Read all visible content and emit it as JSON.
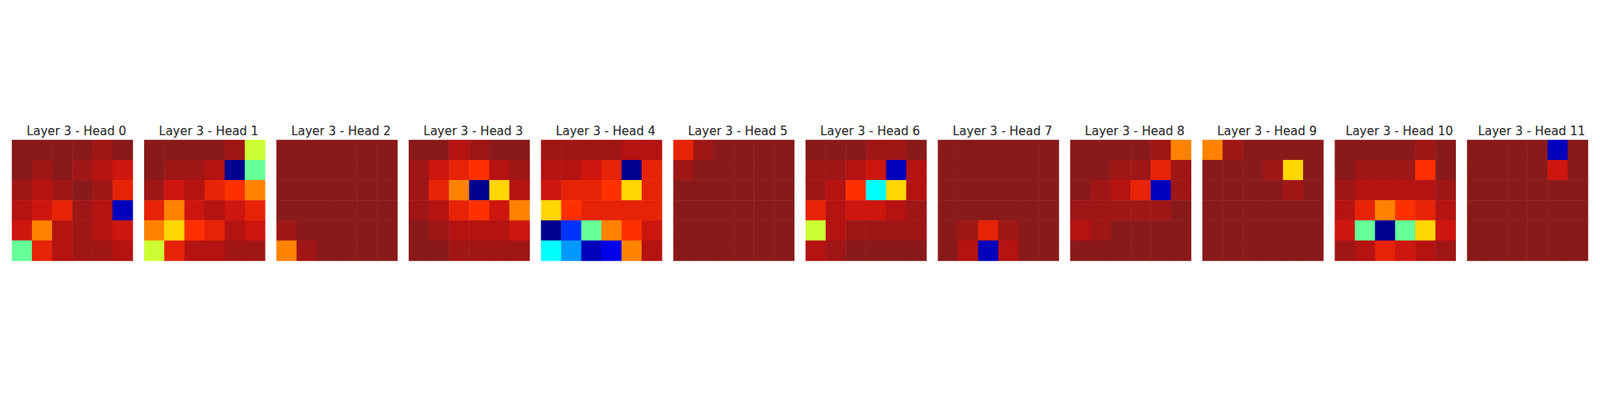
{
  "chart_data": [
    {
      "type": "heatmap",
      "title": "Layer 3 - Head 0",
      "tick_labels": false,
      "cells": [
        [
          0.9,
          0.9,
          0.9,
          0.9,
          0.85,
          0.9
        ],
        [
          0.9,
          0.85,
          0.9,
          0.85,
          0.8,
          0.75
        ],
        [
          0.85,
          0.8,
          0.85,
          0.9,
          0.85,
          0.7
        ],
        [
          0.8,
          0.75,
          0.7,
          0.85,
          0.8,
          0.2
        ],
        [
          0.75,
          0.6,
          0.8,
          0.85,
          0.8,
          0.75
        ],
        [
          0.45,
          0.7,
          0.8,
          0.85,
          0.85,
          0.8
        ]
      ]
    },
    {
      "type": "heatmap",
      "title": "Layer 3 - Head 1",
      "tick_labels": false,
      "cells": [
        [
          0.9,
          0.9,
          0.9,
          0.9,
          0.85,
          0.5
        ],
        [
          0.9,
          0.85,
          0.85,
          0.8,
          0.15,
          0.45
        ],
        [
          0.85,
          0.75,
          0.8,
          0.7,
          0.65,
          0.6
        ],
        [
          0.7,
          0.6,
          0.75,
          0.8,
          0.75,
          0.7
        ],
        [
          0.6,
          0.55,
          0.65,
          0.7,
          0.8,
          0.75
        ],
        [
          0.5,
          0.7,
          0.8,
          0.8,
          0.85,
          0.85
        ]
      ]
    },
    {
      "type": "heatmap",
      "title": "Layer 3 - Head 2",
      "tick_labels": false,
      "cells": [
        [
          0.9,
          0.9,
          0.9,
          0.9,
          0.9,
          0.9
        ],
        [
          0.9,
          0.9,
          0.9,
          0.9,
          0.9,
          0.9
        ],
        [
          0.9,
          0.9,
          0.9,
          0.9,
          0.9,
          0.9
        ],
        [
          0.9,
          0.9,
          0.9,
          0.9,
          0.9,
          0.9
        ],
        [
          0.85,
          0.9,
          0.9,
          0.9,
          0.9,
          0.9
        ],
        [
          0.6,
          0.85,
          0.9,
          0.9,
          0.9,
          0.9
        ]
      ]
    },
    {
      "type": "heatmap",
      "title": "Layer 3 - Head 3",
      "tick_labels": false,
      "cells": [
        [
          0.9,
          0.9,
          0.8,
          0.85,
          0.9,
          0.9
        ],
        [
          0.85,
          0.75,
          0.7,
          0.65,
          0.8,
          0.85
        ],
        [
          0.85,
          0.7,
          0.6,
          0.15,
          0.55,
          0.8
        ],
        [
          0.85,
          0.8,
          0.7,
          0.65,
          0.75,
          0.6
        ],
        [
          0.9,
          0.85,
          0.8,
          0.8,
          0.8,
          0.75
        ],
        [
          0.9,
          0.9,
          0.85,
          0.85,
          0.85,
          0.85
        ]
      ]
    },
    {
      "type": "heatmap",
      "title": "Layer 3 - Head 4",
      "tick_labels": false,
      "cells": [
        [
          0.85,
          0.85,
          0.85,
          0.85,
          0.8,
          0.8
        ],
        [
          0.8,
          0.8,
          0.75,
          0.7,
          0.15,
          0.7
        ],
        [
          0.75,
          0.7,
          0.7,
          0.65,
          0.55,
          0.7
        ],
        [
          0.55,
          0.65,
          0.7,
          0.7,
          0.7,
          0.7
        ],
        [
          0.15,
          0.3,
          0.45,
          0.6,
          0.65,
          0.75
        ],
        [
          0.4,
          0.35,
          0.2,
          0.25,
          0.6,
          0.8
        ]
      ]
    },
    {
      "type": "heatmap",
      "title": "Layer 3 - Head 5",
      "tick_labels": false,
      "cells": [
        [
          0.7,
          0.85,
          0.9,
          0.9,
          0.9,
          0.9
        ],
        [
          0.85,
          0.9,
          0.9,
          0.9,
          0.9,
          0.9
        ],
        [
          0.9,
          0.9,
          0.9,
          0.9,
          0.9,
          0.9
        ],
        [
          0.9,
          0.9,
          0.9,
          0.9,
          0.9,
          0.9
        ],
        [
          0.9,
          0.9,
          0.9,
          0.9,
          0.9,
          0.9
        ],
        [
          0.9,
          0.9,
          0.9,
          0.9,
          0.9,
          0.9
        ]
      ]
    },
    {
      "type": "heatmap",
      "title": "Layer 3 - Head 6",
      "tick_labels": false,
      "cells": [
        [
          0.9,
          0.9,
          0.9,
          0.85,
          0.85,
          0.9
        ],
        [
          0.85,
          0.85,
          0.8,
          0.75,
          0.2,
          0.8
        ],
        [
          0.85,
          0.8,
          0.65,
          0.4,
          0.55,
          0.8
        ],
        [
          0.7,
          0.8,
          0.75,
          0.75,
          0.8,
          0.85
        ],
        [
          0.5,
          0.8,
          0.85,
          0.85,
          0.85,
          0.85
        ],
        [
          0.8,
          0.85,
          0.9,
          0.9,
          0.9,
          0.9
        ]
      ]
    },
    {
      "type": "heatmap",
      "title": "Layer 3 - Head 7",
      "tick_labels": false,
      "cells": [
        [
          0.9,
          0.9,
          0.9,
          0.9,
          0.9,
          0.9
        ],
        [
          0.9,
          0.9,
          0.9,
          0.9,
          0.9,
          0.9
        ],
        [
          0.9,
          0.9,
          0.9,
          0.9,
          0.9,
          0.9
        ],
        [
          0.9,
          0.9,
          0.9,
          0.9,
          0.9,
          0.9
        ],
        [
          0.9,
          0.85,
          0.7,
          0.85,
          0.9,
          0.9
        ],
        [
          0.9,
          0.8,
          0.2,
          0.8,
          0.9,
          0.9
        ]
      ]
    },
    {
      "type": "heatmap",
      "title": "Layer 3 - Head 8",
      "tick_labels": false,
      "cells": [
        [
          0.9,
          0.9,
          0.9,
          0.9,
          0.85,
          0.6
        ],
        [
          0.9,
          0.9,
          0.85,
          0.85,
          0.7,
          0.85
        ],
        [
          0.9,
          0.85,
          0.8,
          0.7,
          0.2,
          0.85
        ],
        [
          0.85,
          0.85,
          0.85,
          0.85,
          0.85,
          0.9
        ],
        [
          0.8,
          0.85,
          0.9,
          0.9,
          0.9,
          0.9
        ],
        [
          0.9,
          0.9,
          0.9,
          0.9,
          0.9,
          0.9
        ]
      ]
    },
    {
      "type": "heatmap",
      "title": "Layer 3 - Head 9",
      "tick_labels": false,
      "cells": [
        [
          0.6,
          0.85,
          0.9,
          0.9,
          0.9,
          0.9
        ],
        [
          0.9,
          0.9,
          0.9,
          0.85,
          0.55,
          0.9
        ],
        [
          0.9,
          0.9,
          0.9,
          0.9,
          0.85,
          0.9
        ],
        [
          0.9,
          0.9,
          0.9,
          0.9,
          0.9,
          0.9
        ],
        [
          0.9,
          0.9,
          0.9,
          0.9,
          0.9,
          0.9
        ],
        [
          0.9,
          0.9,
          0.9,
          0.9,
          0.9,
          0.9
        ]
      ]
    },
    {
      "type": "heatmap",
      "title": "Layer 3 - Head 10",
      "tick_labels": false,
      "cells": [
        [
          0.9,
          0.9,
          0.9,
          0.9,
          0.85,
          0.9
        ],
        [
          0.9,
          0.85,
          0.85,
          0.85,
          0.65,
          0.9
        ],
        [
          0.85,
          0.8,
          0.8,
          0.8,
          0.8,
          0.85
        ],
        [
          0.8,
          0.7,
          0.6,
          0.65,
          0.7,
          0.8
        ],
        [
          0.75,
          0.45,
          0.15,
          0.45,
          0.55,
          0.75
        ],
        [
          0.85,
          0.8,
          0.7,
          0.75,
          0.8,
          0.85
        ]
      ]
    },
    {
      "type": "heatmap",
      "title": "Layer 3 - Head 11",
      "tick_labels": false,
      "cells": [
        [
          0.9,
          0.9,
          0.9,
          0.9,
          0.2,
          0.9
        ],
        [
          0.9,
          0.9,
          0.9,
          0.9,
          0.75,
          0.9
        ],
        [
          0.9,
          0.9,
          0.9,
          0.9,
          0.9,
          0.9
        ],
        [
          0.9,
          0.9,
          0.9,
          0.9,
          0.9,
          0.9
        ],
        [
          0.9,
          0.9,
          0.9,
          0.9,
          0.9,
          0.9
        ],
        [
          0.9,
          0.9,
          0.9,
          0.9,
          0.9,
          0.9
        ]
      ]
    }
  ]
}
